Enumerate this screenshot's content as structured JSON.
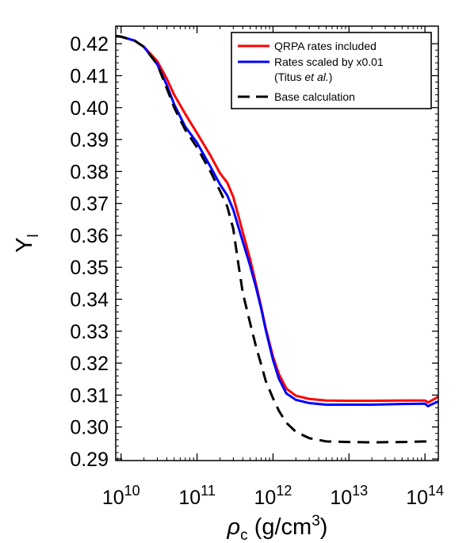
{
  "chart_data": {
    "type": "line",
    "xscale": "log",
    "xlim": [
      8500000000.0,
      150000000000000.0
    ],
    "ylim": [
      0.2895,
      0.4255
    ],
    "ylabel": {
      "main": "Y",
      "sub": "l"
    },
    "xlabel": {
      "symbol": "ρ",
      "sub": "c",
      "text": " (g/cm",
      "sup": "3",
      "close": ")"
    },
    "yticks": {
      "values": [
        0.29,
        0.3,
        0.31,
        0.32,
        0.33,
        0.34,
        0.35,
        0.36,
        0.37,
        0.38,
        0.39,
        0.4,
        0.41,
        0.42
      ],
      "labels": [
        "0.29",
        "0.30",
        "0.31",
        "0.32",
        "0.33",
        "0.34",
        "0.35",
        "0.36",
        "0.37",
        "0.38",
        "0.39",
        "0.40",
        "0.41",
        "0.42"
      ]
    },
    "xticks": [
      {
        "value": 10000000000.0,
        "base": "10",
        "exp": "10"
      },
      {
        "value": 100000000000.0,
        "base": "10",
        "exp": "11"
      },
      {
        "value": 1000000000000.0,
        "base": "10",
        "exp": "12"
      },
      {
        "value": 10000000000000.0,
        "base": "10",
        "exp": "13"
      },
      {
        "value": 100000000000000.0,
        "base": "10",
        "exp": "14"
      }
    ],
    "legend": {
      "position": "top-right",
      "entries": [
        {
          "series": 0,
          "text": "QRPA rates included"
        },
        {
          "series": 1,
          "text": "Rates scaled by x0.01",
          "note_pre": "(Titus ",
          "note_em": "et al.",
          "note_post": ")"
        },
        {
          "series": 2,
          "text": "Base calculation"
        }
      ]
    },
    "series": [
      {
        "name": "QRPA rates included",
        "color": "#ff0000",
        "style": "solid",
        "x": [
          8500000000.0,
          10000000000.0,
          15000000000.0,
          20000000000.0,
          30000000000.0,
          40000000000.0,
          50000000000.0,
          70000000000.0,
          100000000000.0,
          150000000000.0,
          200000000000.0,
          250000000000.0,
          300000000000.0,
          400000000000.0,
          500000000000.0,
          600000000000.0,
          700000000000.0,
          800000000000.0,
          1000000000000.0,
          1200000000000.0,
          1500000000000.0,
          2000000000000.0,
          3000000000000.0,
          5000000000000.0,
          10000000000000.0,
          20000000000000.0,
          50000000000000.0,
          100000000000000.0,
          110000000000000.0,
          120000000000000.0,
          150000000000000.0
        ],
        "y": [
          0.4224,
          0.4222,
          0.421,
          0.419,
          0.4145,
          0.409,
          0.404,
          0.398,
          0.392,
          0.385,
          0.3795,
          0.3765,
          0.372,
          0.361,
          0.3525,
          0.3445,
          0.3375,
          0.331,
          0.322,
          0.3165,
          0.312,
          0.3098,
          0.3088,
          0.3083,
          0.3082,
          0.3082,
          0.3083,
          0.3083,
          0.3077,
          0.3082,
          0.3095
        ]
      },
      {
        "name": "Rates scaled by x0.01",
        "color": "#0000ff",
        "style": "solid",
        "x": [
          8500000000.0,
          10000000000.0,
          15000000000.0,
          20000000000.0,
          30000000000.0,
          40000000000.0,
          50000000000.0,
          70000000000.0,
          100000000000.0,
          150000000000.0,
          200000000000.0,
          250000000000.0,
          300000000000.0,
          400000000000.0,
          500000000000.0,
          600000000000.0,
          700000000000.0,
          800000000000.0,
          1000000000000.0,
          1200000000000.0,
          1500000000000.0,
          2000000000000.0,
          3000000000000.0,
          5000000000000.0,
          10000000000000.0,
          20000000000000.0,
          50000000000000.0,
          100000000000000.0,
          110000000000000.0,
          120000000000000.0,
          150000000000000.0
        ],
        "y": [
          0.4224,
          0.4222,
          0.421,
          0.419,
          0.4135,
          0.407,
          0.401,
          0.394,
          0.389,
          0.3815,
          0.376,
          0.3725,
          0.368,
          0.358,
          0.3505,
          0.3435,
          0.337,
          0.3305,
          0.321,
          0.315,
          0.3105,
          0.3085,
          0.3075,
          0.307,
          0.307,
          0.307,
          0.3072,
          0.3073,
          0.3065,
          0.307,
          0.308
        ]
      },
      {
        "name": "Base calculation",
        "color": "#000000",
        "style": "dashed",
        "x": [
          8500000000.0,
          10000000000.0,
          15000000000.0,
          20000000000.0,
          30000000000.0,
          40000000000.0,
          50000000000.0,
          70000000000.0,
          100000000000.0,
          150000000000.0,
          200000000000.0,
          250000000000.0,
          300000000000.0,
          350000000000.0,
          400000000000.0,
          500000000000.0,
          600000000000.0,
          700000000000.0,
          800000000000.0,
          1000000000000.0,
          1200000000000.0,
          1500000000000.0,
          2000000000000.0,
          3000000000000.0,
          5000000000000.0,
          10000000000000.0,
          20000000000000.0,
          50000000000000.0,
          100000000000000.0,
          120000000000000.0
        ],
        "y": [
          0.4224,
          0.4222,
          0.421,
          0.419,
          0.4135,
          0.406,
          0.4,
          0.393,
          0.3875,
          0.38,
          0.374,
          0.369,
          0.362,
          0.351,
          0.342,
          0.3325,
          0.325,
          0.3195,
          0.3145,
          0.309,
          0.305,
          0.3013,
          0.2985,
          0.2965,
          0.2955,
          0.2953,
          0.2952,
          0.2953,
          0.2955,
          0.295
        ]
      }
    ]
  }
}
